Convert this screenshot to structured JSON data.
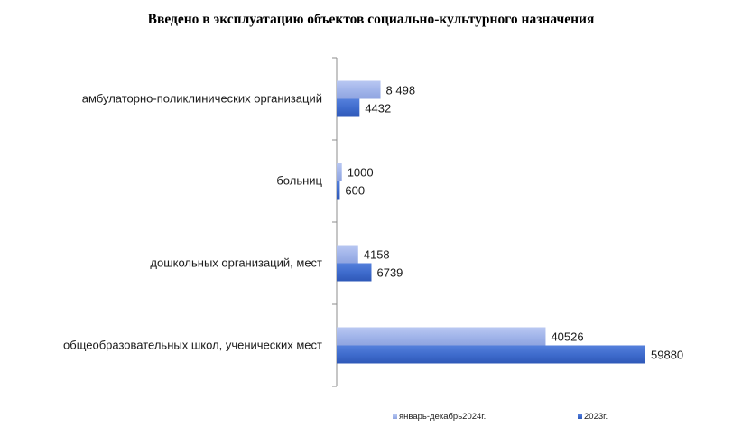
{
  "chart_data": {
    "type": "bar",
    "orientation": "horizontal",
    "title": "Введено в эксплуатацию объектов социально-культурного назначения",
    "categories": [
      "амбулаторно-поликлинических  организаций",
      "больниц",
      "дошкольных организаций, мест",
      "общеобразовательных школ, ученических мест"
    ],
    "series": [
      {
        "name": "январь-декабрь2024г.",
        "color": "#9aaee8",
        "values": [
          8498,
          1000,
          4158,
          40526
        ],
        "value_labels": [
          "8 498",
          "1000",
          "4158",
          "40526"
        ]
      },
      {
        "name": "2023г.",
        "color": "#3f6ccd",
        "values": [
          4432,
          600,
          6739,
          59880
        ],
        "value_labels": [
          "4432",
          "600",
          "6739",
          "59880"
        ]
      }
    ],
    "xlim": [
      0,
      65000
    ],
    "grid": false,
    "legend_position": "bottom"
  }
}
